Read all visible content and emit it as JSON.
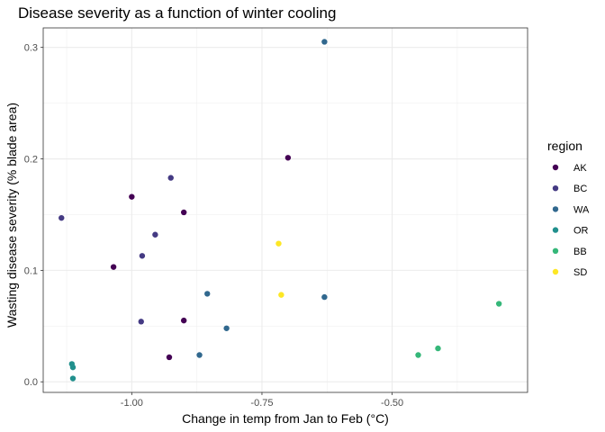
{
  "chart_data": {
    "type": "scatter",
    "title": "Disease severity as a function of winter cooling",
    "xlabel": "Change in temp from Jan to Feb (°C)",
    "ylabel": "Wasting disease severity (% blade area)",
    "xlim": [
      -1.17,
      -0.24
    ],
    "ylim": [
      -0.0095,
      0.3175
    ],
    "x_ticks": [
      -1.0,
      -0.75,
      -0.5
    ],
    "x_tick_labels": [
      "-1.00",
      "-0.75",
      "-0.50"
    ],
    "y_ticks": [
      0.0,
      0.1,
      0.2,
      0.3
    ],
    "y_tick_labels": [
      "0.0",
      "0.1",
      "0.2",
      "0.3"
    ],
    "grid": true,
    "legend": {
      "title": "region",
      "placement": "right"
    },
    "series": [
      {
        "name": "AK",
        "color": "#440154",
        "points": [
          {
            "x": -1.0,
            "y": 0.166
          },
          {
            "x": -1.035,
            "y": 0.103
          },
          {
            "x": -0.9,
            "y": 0.152
          },
          {
            "x": -0.9,
            "y": 0.055
          },
          {
            "x": -0.928,
            "y": 0.022
          },
          {
            "x": -0.7,
            "y": 0.201
          }
        ]
      },
      {
        "name": "BC",
        "color": "#443a83",
        "points": [
          {
            "x": -1.135,
            "y": 0.147
          },
          {
            "x": -0.925,
            "y": 0.183
          },
          {
            "x": -0.955,
            "y": 0.132
          },
          {
            "x": -0.98,
            "y": 0.113
          },
          {
            "x": -0.982,
            "y": 0.054
          }
        ]
      },
      {
        "name": "WA",
        "color": "#31688e",
        "points": [
          {
            "x": -0.63,
            "y": 0.305
          },
          {
            "x": -0.855,
            "y": 0.079
          },
          {
            "x": -0.818,
            "y": 0.048
          },
          {
            "x": -0.87,
            "y": 0.024
          },
          {
            "x": -0.63,
            "y": 0.076
          }
        ]
      },
      {
        "name": "OR",
        "color": "#21908d",
        "points": [
          {
            "x": -1.115,
            "y": 0.016
          },
          {
            "x": -1.113,
            "y": 0.013
          },
          {
            "x": -1.113,
            "y": 0.003
          }
        ]
      },
      {
        "name": "BB",
        "color": "#35b779",
        "points": [
          {
            "x": -0.295,
            "y": 0.07
          },
          {
            "x": -0.412,
            "y": 0.03
          },
          {
            "x": -0.45,
            "y": 0.024
          }
        ]
      },
      {
        "name": "SD",
        "color": "#fde725",
        "points": [
          {
            "x": -0.718,
            "y": 0.124
          },
          {
            "x": -0.713,
            "y": 0.078
          }
        ]
      }
    ]
  }
}
